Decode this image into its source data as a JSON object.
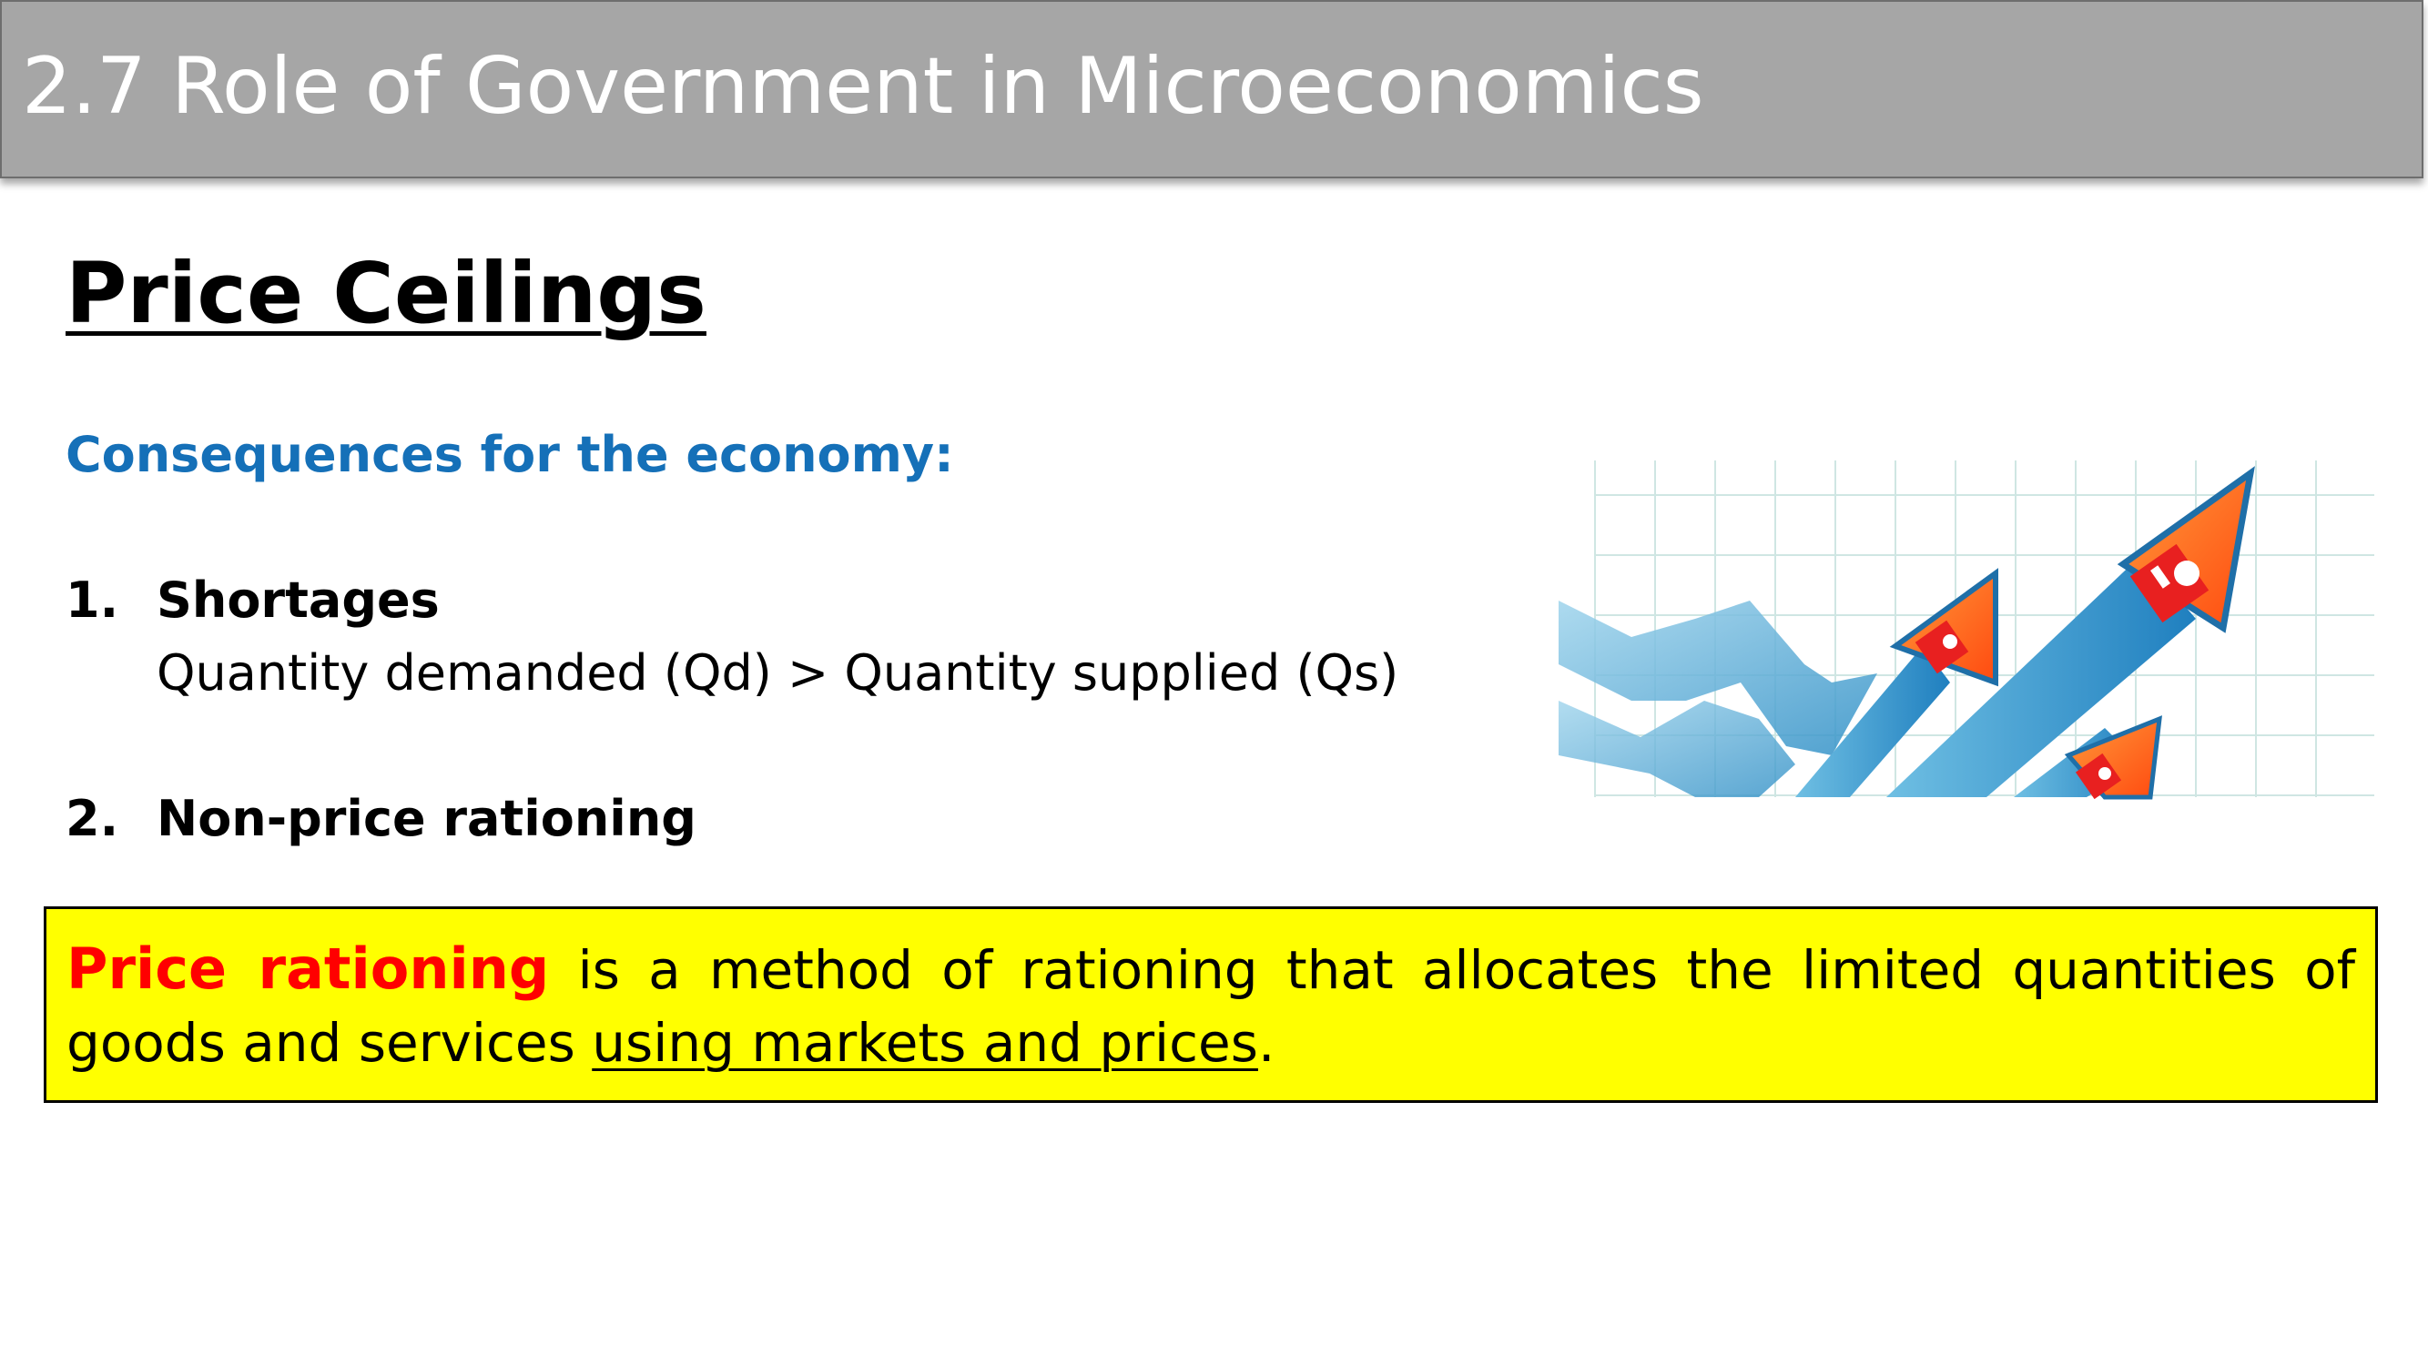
{
  "header": {
    "title": "2.7 Role of Government in Microeconomics"
  },
  "page_title": "Price Ceilings",
  "subheading": "Consequences for the economy:",
  "items": [
    {
      "number": "1.",
      "label": "Shortages",
      "detail": "Quantity demanded (Qd) > Quantity supplied (Qs)"
    },
    {
      "number": "2.",
      "label": "Non-price rationing"
    }
  ],
  "definition": {
    "term": "Price rationing",
    "text_before_link": " is a method of rationing that allocates the limited quantities of goods and services ",
    "underlined": "using markets and prices",
    "text_after": "."
  },
  "illustration": {
    "icon": "rising-arrows-houses-graph-icon"
  },
  "colors": {
    "header_bg": "#a6a6a6",
    "subheading": "#1570b8",
    "definition_bg": "#ffff00",
    "term": "#ff0000"
  }
}
